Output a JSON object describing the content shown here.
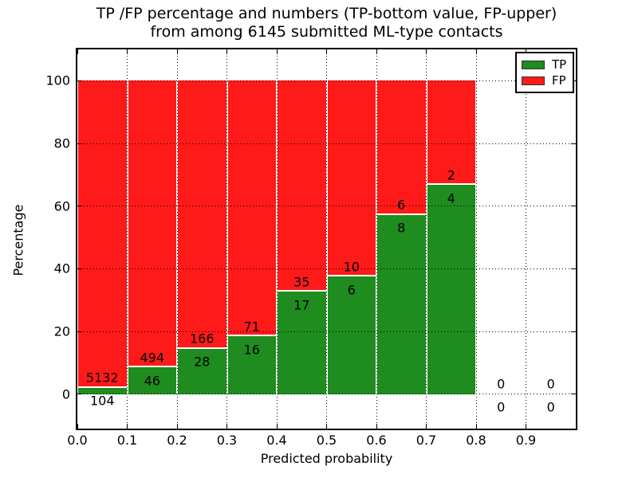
{
  "title": {
    "line1": "TP /FP percentage and numbers (TP-bottom value, FP-upper)",
    "line2": "from among 6145 submitted ML-type contacts"
  },
  "legend": {
    "items": [
      {
        "label": "TP",
        "color": "#1e8c1e"
      },
      {
        "label": "FP",
        "color": "#ff1a1a"
      }
    ]
  },
  "colors": {
    "tp": "#1e8c1e",
    "fp": "#ff1a1a",
    "axis": "#000000",
    "background": "#ffffff"
  },
  "chart_data": {
    "type": "bar",
    "stacked": true,
    "normalized_to_percent": true,
    "title": "TP /FP percentage and numbers (TP-bottom value, FP-upper) from among 6145 submitted ML-type contacts",
    "xlabel": "Predicted probability",
    "ylabel": "Percentage",
    "total_contacts": 6145,
    "xlim": [
      0.0,
      1.0
    ],
    "ylim": [
      -11,
      110
    ],
    "bin_width": 0.1,
    "x_tick_labels": [
      "0.0",
      "0.1",
      "0.2",
      "0.3",
      "0.4",
      "0.5",
      "0.6",
      "0.7",
      "0.8",
      "0.9"
    ],
    "y_tick_values": [
      0,
      20,
      40,
      60,
      80,
      100
    ],
    "grid": true,
    "legend_position": "upper right",
    "categories": [
      "0.0-0.1",
      "0.1-0.2",
      "0.2-0.3",
      "0.3-0.4",
      "0.4-0.5",
      "0.5-0.6",
      "0.6-0.7",
      "0.7-0.8",
      "0.8-0.9",
      "0.9-1.0"
    ],
    "series": [
      {
        "name": "TP",
        "color": "#1e8c1e",
        "counts": [
          104,
          46,
          28,
          16,
          17,
          6,
          8,
          4,
          0,
          0
        ]
      },
      {
        "name": "FP",
        "color": "#ff1a1a",
        "counts": [
          5132,
          494,
          166,
          71,
          35,
          10,
          6,
          2,
          0,
          0
        ]
      }
    ],
    "tp_percent_heights": [
      1.99,
      8.52,
      14.43,
      18.39,
      32.69,
      37.5,
      57.14,
      66.67,
      0,
      0
    ],
    "fp_percent_heights": [
      98.01,
      91.48,
      85.57,
      81.61,
      67.31,
      62.5,
      42.86,
      33.33,
      0,
      0
    ]
  }
}
